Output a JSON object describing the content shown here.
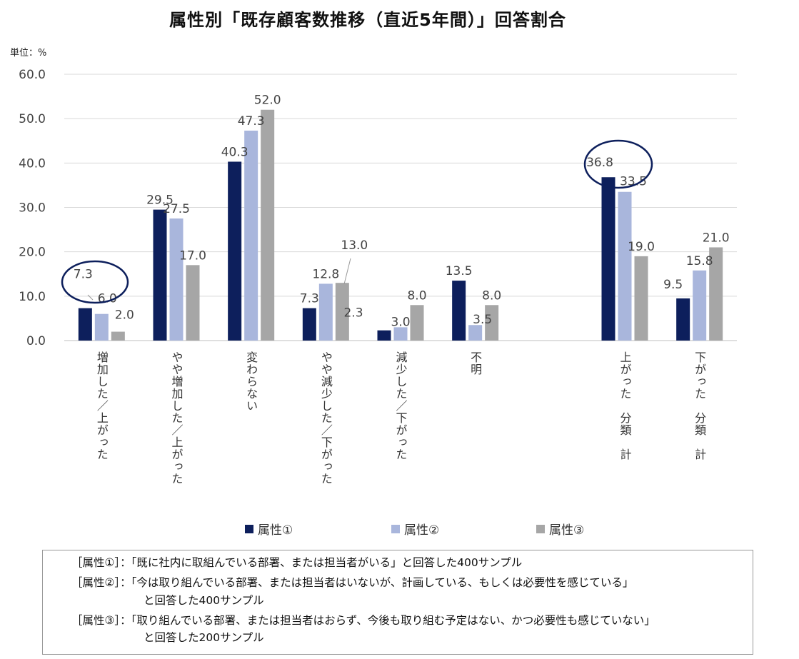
{
  "chart_data": {
    "type": "bar",
    "title": "属性別「既存顧客数推移（直近5年間）」回答割合",
    "unit_label": "単位：%",
    "ylim": [
      0,
      60
    ],
    "yticks": [
      "0.0",
      "10.0",
      "20.0",
      "30.0",
      "40.0",
      "50.0",
      "60.0"
    ],
    "grid": true,
    "legend_position": "bottom",
    "categories": [
      "増加した／上がった",
      "やや増加した／上がった",
      "変わらない",
      "やや減少した／下がった",
      "減少した／下がった",
      "不明",
      "",
      "上がった　分類　計",
      "下がった　分類　計"
    ],
    "series": [
      {
        "name": "属性①",
        "color": "#0d1f5c",
        "values": [
          7.3,
          29.5,
          40.3,
          7.3,
          2.3,
          13.5,
          null,
          36.8,
          9.5
        ]
      },
      {
        "name": "属性②",
        "color": "#a9b6dc",
        "values": [
          6.0,
          27.5,
          47.3,
          12.8,
          3.0,
          3.5,
          null,
          33.5,
          15.8
        ]
      },
      {
        "name": "属性③",
        "color": "#a6a6a6",
        "values": [
          2.0,
          17.0,
          52.0,
          13.0,
          8.0,
          8.0,
          null,
          19.0,
          21.0
        ]
      }
    ],
    "highlight_circles": [
      "増加した／上がった",
      "上がった　分類　計"
    ]
  },
  "notes": [
    "［属性①］：「既に社内に取組んでいる部署、または担当者がいる」と回答した400サンプル",
    "［属性②］：「今は取り組んでいる部署、または担当者はいないが、計画している、もしくは必要性を感じている」",
    "と回答した400サンプル",
    "［属性③］：「取り組んでいる部署、または担当者はおらず、今後も取り組む予定はない、かつ必要性も感じていない」",
    "と回答した200サンプル"
  ]
}
